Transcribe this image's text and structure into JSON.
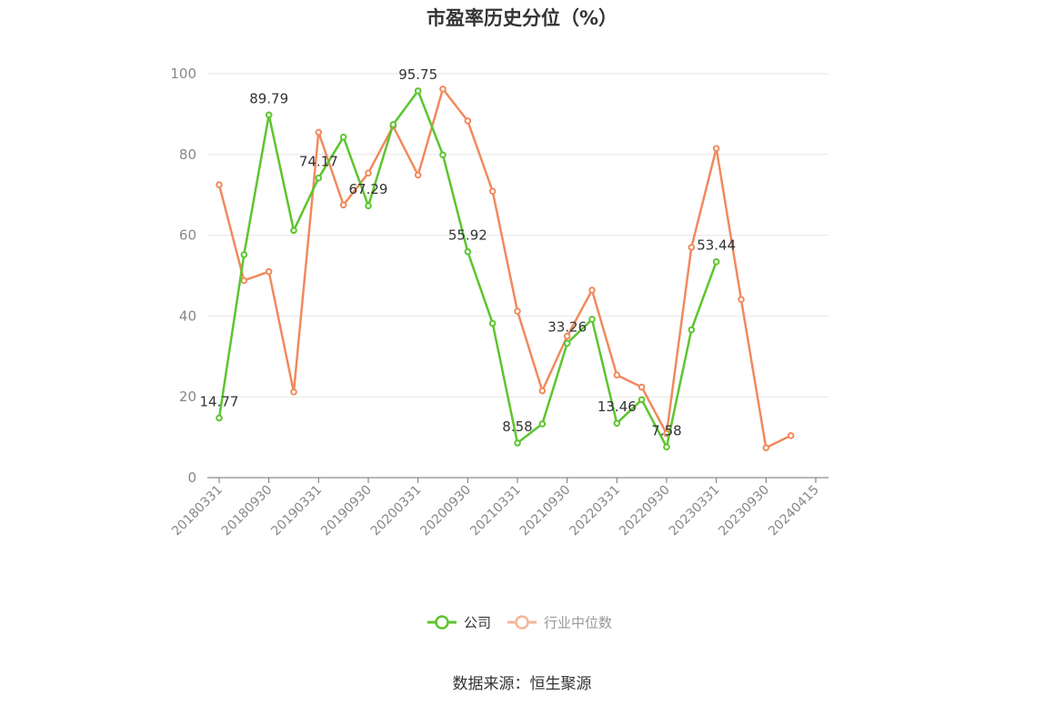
{
  "title": "市盈率历史分位（%）",
  "source": "数据来源：恒生聚源",
  "chart_data": {
    "type": "line",
    "title": "市盈率历史分位（%）",
    "ylim": [
      0,
      100
    ],
    "yticks": [
      0,
      20,
      40,
      60,
      80,
      100
    ],
    "grid": true,
    "legend_position": "bottom-center",
    "x_tick_labels": [
      "20180331",
      "20180930",
      "20190331",
      "20190930",
      "20200331",
      "20200930",
      "20210331",
      "20210930",
      "20220331",
      "20220930",
      "20230331",
      "20230930",
      "20240415"
    ],
    "x": [
      "20180331",
      "20180630",
      "20180930",
      "20181231",
      "20190331",
      "20190630",
      "20190930",
      "20191231",
      "20200331",
      "20200630",
      "20200930",
      "20201231",
      "20210331",
      "20210630",
      "20210930",
      "20211231",
      "20220331",
      "20220630",
      "20220930",
      "20221231",
      "20230331",
      "20230630",
      "20230930",
      "20231231",
      "20240415"
    ],
    "series": [
      {
        "name": "公司",
        "color": "#5cc52e",
        "values": [
          14.77,
          55.2,
          89.79,
          61.2,
          74.17,
          84.3,
          67.29,
          87.4,
          95.75,
          79.9,
          55.92,
          38.2,
          8.58,
          13.3,
          33.26,
          39.2,
          13.46,
          19.3,
          7.58,
          36.6,
          53.44,
          null,
          null,
          null,
          null
        ],
        "labels": {
          "0": "14.77",
          "2": "89.79",
          "4": "74.17",
          "6": "67.29",
          "8": "95.75",
          "10": "55.92",
          "12": "8.58",
          "14": "33.26",
          "16": "13.46",
          "18": "7.58",
          "20": "53.44"
        }
      },
      {
        "name": "行业中位数",
        "color": "#f08a5d",
        "values": [
          72.5,
          48.8,
          51.0,
          21.2,
          85.5,
          67.5,
          75.4,
          87.0,
          74.9,
          96.2,
          88.3,
          70.9,
          41.2,
          21.5,
          35.0,
          46.4,
          25.4,
          22.4,
          10.9,
          57.0,
          81.5,
          44.1,
          7.4,
          10.4,
          null
        ]
      }
    ]
  },
  "legend": {
    "company": "公司",
    "industry": "行业中位数"
  }
}
